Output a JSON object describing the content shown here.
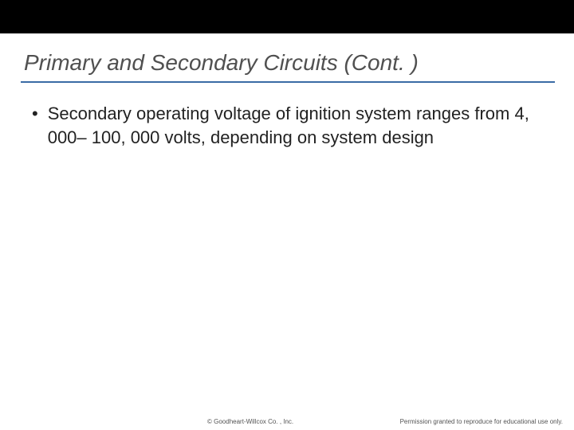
{
  "slide": {
    "title": "Primary and Secondary Circuits (Cont. )",
    "title_color": "#505050",
    "title_fontsize": 28,
    "title_style": "italic",
    "rule_color": "#3a6ba5",
    "topbar_color": "#000000",
    "background_color": "#ffffff",
    "bullets": [
      {
        "marker": "•",
        "text": "Secondary operating voltage of ignition system ranges from 4, 000– 100, 000 volts, depending on system design"
      }
    ],
    "body_fontsize": 22,
    "body_color": "#222222"
  },
  "footer": {
    "copyright": "© Goodheart-Willcox Co. , Inc.",
    "permission": "Permission granted to reproduce for educational use only.",
    "fontsize": 8,
    "color": "#555555"
  }
}
